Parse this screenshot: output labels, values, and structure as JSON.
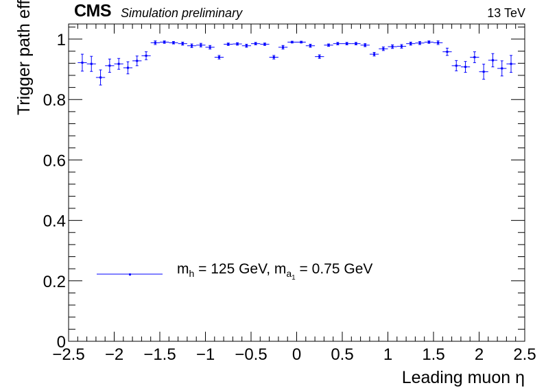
{
  "header": {
    "experiment": "CMS",
    "status": "Simulation preliminary",
    "energy": "13 TeV"
  },
  "legend": {
    "prefix": "m",
    "sub_h": "h",
    "part1": " = 125 GeV, m",
    "sub_a": "a",
    "sub_a_index": "1",
    "part2": " = 0.75 GeV",
    "color": "#0000ff"
  },
  "chart_data": {
    "type": "scatter",
    "xlabel": "Leading muon η",
    "ylabel": "Trigger path efficiency",
    "xlim": [
      -2.5,
      2.5
    ],
    "ylim": [
      0,
      1.05
    ],
    "xticks": [
      -2.5,
      -2,
      -1.5,
      -1,
      -0.5,
      0,
      0.5,
      1,
      1.5,
      2,
      2.5
    ],
    "xtick_labels": [
      "−2.5",
      "−2",
      "−1.5",
      "−1",
      "−0.5",
      "0",
      "0.5",
      "1",
      "1.5",
      "2",
      "2.5"
    ],
    "yticks": [
      0,
      0.2,
      0.4,
      0.6,
      0.8,
      1
    ],
    "ytick_labels": [
      "0",
      "0.2",
      "0.4",
      "0.6",
      "0.8",
      "1"
    ],
    "grid": false,
    "legend_position": "bottom-left",
    "series": [
      {
        "name": "m_h = 125 GeV, m_a1 = 0.75 GeV",
        "color": "#0000ff",
        "marker": "point with error bars",
        "bin_half_width": 0.05,
        "x": [
          -2.35,
          -2.25,
          -2.15,
          -2.05,
          -1.95,
          -1.85,
          -1.75,
          -1.65,
          -1.55,
          -1.45,
          -1.35,
          -1.25,
          -1.15,
          -1.05,
          -0.95,
          -0.85,
          -0.75,
          -0.65,
          -0.55,
          -0.45,
          -0.35,
          -0.25,
          -0.15,
          -0.05,
          0.05,
          0.15,
          0.25,
          0.35,
          0.45,
          0.55,
          0.65,
          0.75,
          0.85,
          0.95,
          1.05,
          1.15,
          1.25,
          1.35,
          1.45,
          1.55,
          1.65,
          1.75,
          1.85,
          1.95,
          2.05,
          2.15,
          2.25,
          2.35
        ],
        "y": [
          0.922,
          0.918,
          0.873,
          0.912,
          0.918,
          0.905,
          0.928,
          0.945,
          0.988,
          0.99,
          0.988,
          0.985,
          0.978,
          0.98,
          0.973,
          0.94,
          0.983,
          0.984,
          0.978,
          0.985,
          0.983,
          0.94,
          0.973,
          0.99,
          0.99,
          0.978,
          0.942,
          0.98,
          0.985,
          0.985,
          0.985,
          0.98,
          0.95,
          0.968,
          0.975,
          0.976,
          0.985,
          0.987,
          0.99,
          0.988,
          0.958,
          0.912,
          0.908,
          0.94,
          0.892,
          0.93,
          0.903,
          0.918
        ],
        "y_err": [
          0.028,
          0.025,
          0.025,
          0.022,
          0.018,
          0.02,
          0.016,
          0.013,
          0.006,
          0.004,
          0.004,
          0.005,
          0.006,
          0.006,
          0.006,
          0.006,
          0.004,
          0.004,
          0.005,
          0.004,
          0.004,
          0.006,
          0.006,
          0.003,
          0.003,
          0.005,
          0.006,
          0.004,
          0.004,
          0.004,
          0.004,
          0.005,
          0.006,
          0.006,
          0.006,
          0.006,
          0.005,
          0.005,
          0.004,
          0.006,
          0.012,
          0.017,
          0.018,
          0.018,
          0.025,
          0.022,
          0.025,
          0.028
        ]
      }
    ]
  }
}
